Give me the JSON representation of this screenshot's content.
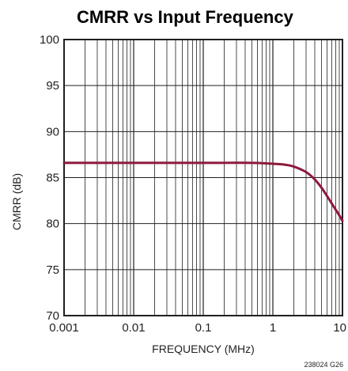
{
  "chart_data": {
    "type": "line",
    "title": "CMRR vs Input Frequency",
    "xlabel": "FREQUENCY (MHz)",
    "ylabel": "CMRR (dB)",
    "xscale": "log",
    "xlim": [
      0.001,
      10
    ],
    "ylim": [
      70,
      100
    ],
    "xticks": [
      0.001,
      0.01,
      0.1,
      1,
      10
    ],
    "xtick_labels": [
      "0.001",
      "0.01",
      "0.1",
      "1",
      "10"
    ],
    "yticks": [
      70,
      75,
      80,
      85,
      90,
      95,
      100
    ],
    "ytick_labels": [
      "70",
      "75",
      "80",
      "85",
      "90",
      "95",
      "100"
    ],
    "grid": true,
    "series": [
      {
        "color": "#8b1a3b",
        "x": [
          0.001,
          0.01,
          0.1,
          0.5,
          1,
          1.5,
          2,
          3,
          4,
          5,
          6,
          7,
          8,
          9,
          10
        ],
        "y": [
          86.6,
          86.6,
          86.6,
          86.6,
          86.5,
          86.4,
          86.2,
          85.6,
          84.8,
          83.9,
          83.0,
          82.2,
          81.5,
          80.9,
          80.3
        ]
      }
    ],
    "figure_code": "238024 G26"
  }
}
